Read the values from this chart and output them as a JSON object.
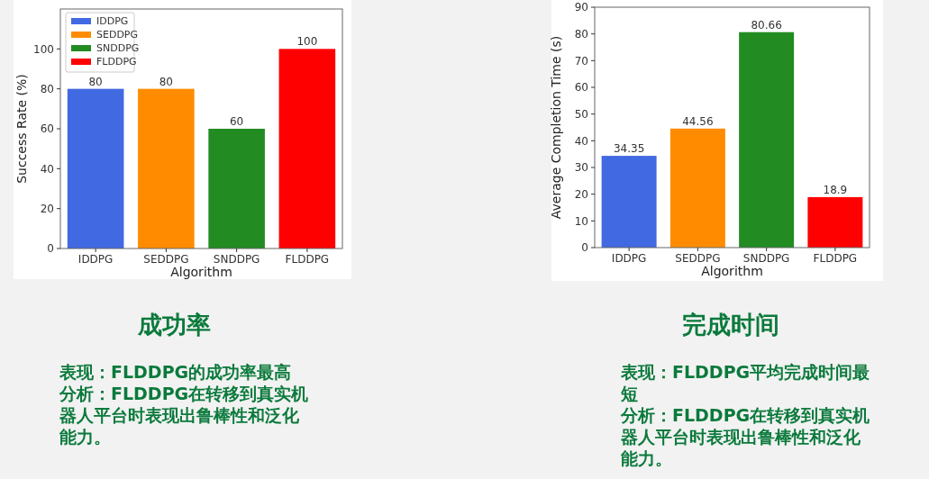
{
  "chart_data": [
    {
      "type": "bar",
      "title": "成功率",
      "xlabel": "Algorithm",
      "ylabel": "Success Rate (%)",
      "categories": [
        "IDDPG",
        "SEDDPG",
        "SNDDPG",
        "FLDDPG"
      ],
      "series": [
        {
          "name": "IDDPG",
          "color": "#4169e1",
          "values": [
            80,
            null,
            null,
            null
          ]
        },
        {
          "name": "SEDDPG",
          "color": "#ff8c00",
          "values": [
            null,
            80,
            null,
            null
          ]
        },
        {
          "name": "SNDDPG",
          "color": "#228b22",
          "values": [
            null,
            null,
            60,
            null
          ]
        },
        {
          "name": "FLDDPG",
          "color": "#ff0000",
          "values": [
            null,
            null,
            null,
            100
          ]
        }
      ],
      "ylim": [
        0,
        120
      ],
      "yticks": [
        0,
        20,
        40,
        60,
        80,
        100
      ],
      "data_labels": true,
      "legend": "top left",
      "annotations": [
        "表现：FLDDPG的成功率最高",
        "分析：FLDDPG在转移到真实机器人平台时表现出鲁棒性和泛化能力。"
      ]
    },
    {
      "type": "bar",
      "title": "完成时间",
      "xlabel": "Algorithm",
      "ylabel": "Average Completion Time (s)",
      "categories": [
        "IDDPG",
        "SEDDPG",
        "SNDDPG",
        "FLDDPG"
      ],
      "values": [
        34.35,
        44.56,
        80.66,
        18.9
      ],
      "colors": [
        "#4169e1",
        "#ff8c00",
        "#228b22",
        "#ff0000"
      ],
      "ylim": [
        0,
        90
      ],
      "yticks": [
        0,
        10,
        20,
        30,
        40,
        50,
        60,
        70,
        80,
        90
      ],
      "data_labels": true,
      "annotations": [
        "表现：FLDDPG平均完成时间最短",
        "分析：FLDDPG在转移到真实机器人平台时表现出鲁棒性和泛化能力。"
      ]
    }
  ]
}
